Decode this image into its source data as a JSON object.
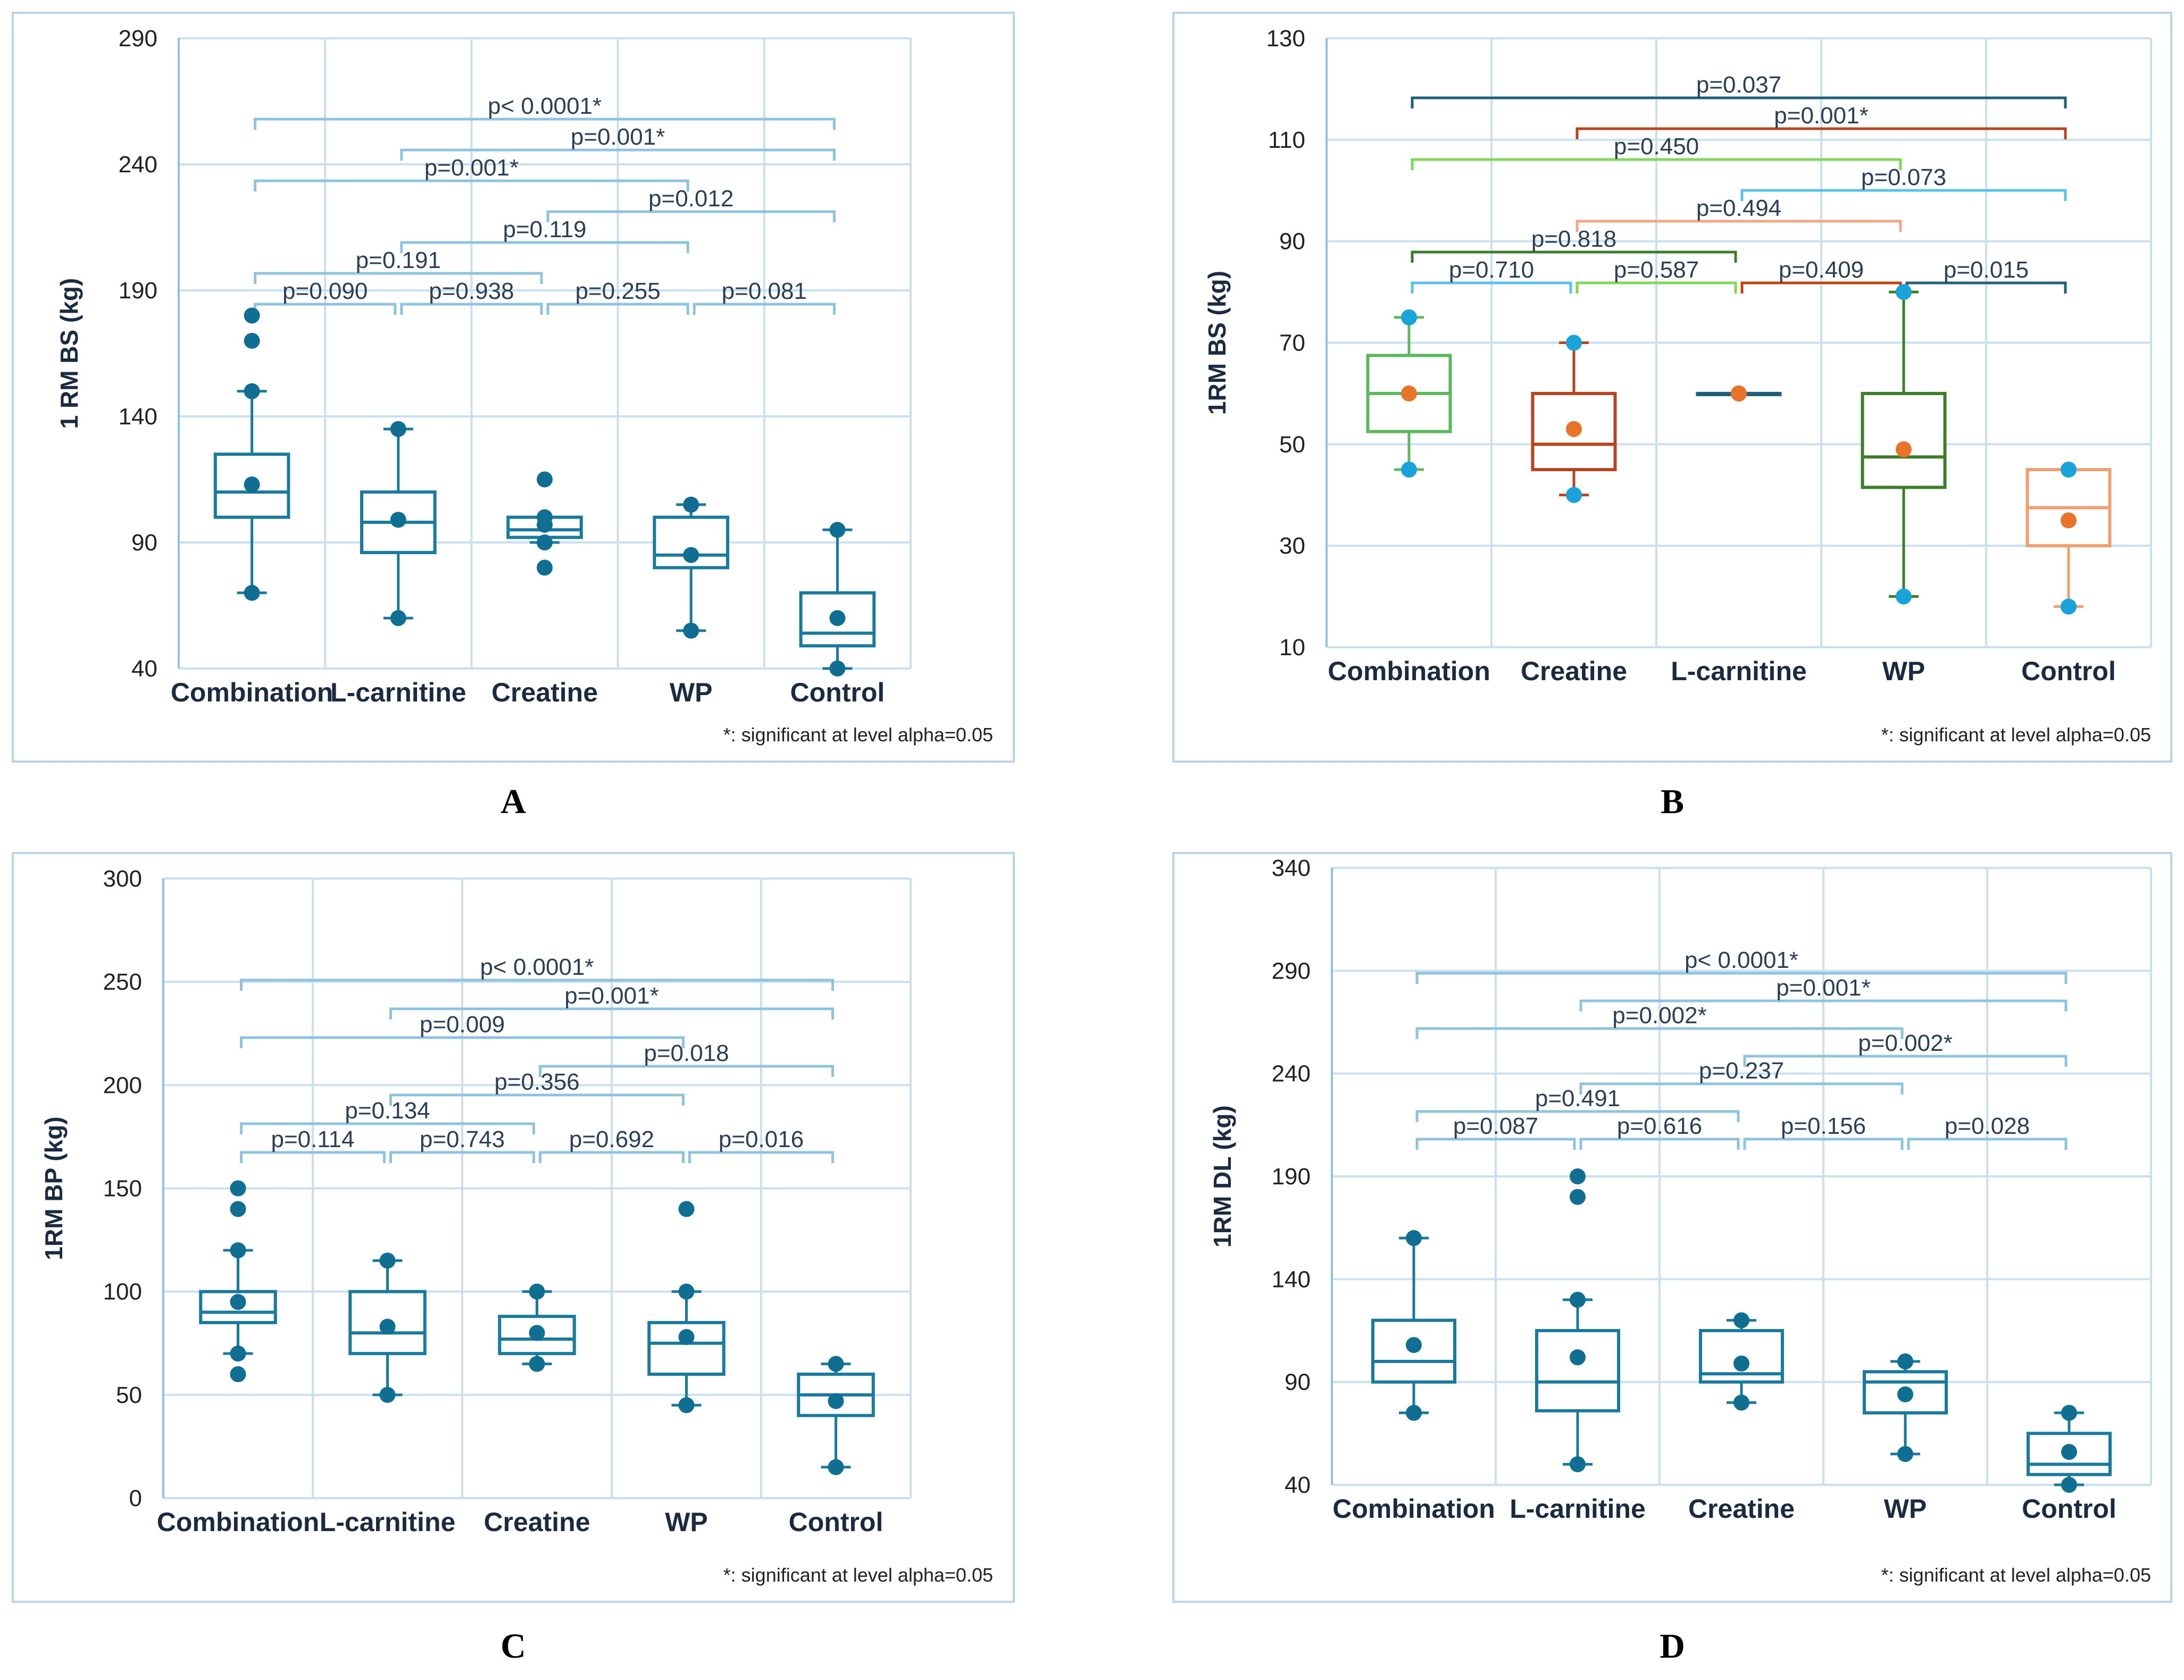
{
  "captions": [
    "A",
    "B",
    "C",
    "D"
  ],
  "chart_data": [
    {
      "panel": "A",
      "type": "box",
      "ylabel": "1 RM BS (kg)",
      "ylim": [
        40,
        290
      ],
      "yticks": [
        40,
        90,
        140,
        190,
        240,
        290
      ],
      "categories": [
        "Combination",
        "L-carnitine",
        "Creatine",
        "WP",
        "Control"
      ],
      "boxes": [
        {
          "q1": 100,
          "median": 110,
          "q3": 125,
          "whisker_low": 70,
          "whisker_high": 150,
          "mean": 113,
          "outliers": [
            170,
            180
          ]
        },
        {
          "q1": 86,
          "median": 98,
          "q3": 110,
          "whisker_low": 60,
          "whisker_high": 135,
          "mean": 99,
          "outliers": []
        },
        {
          "q1": 92,
          "median": 95,
          "q3": 100,
          "whisker_low": 90,
          "whisker_high": 100,
          "mean": 97,
          "outliers": [
            80,
            115
          ]
        },
        {
          "q1": 80,
          "median": 85,
          "q3": 100,
          "whisker_low": 55,
          "whisker_high": 105,
          "mean": 85,
          "outliers": []
        },
        {
          "q1": 49,
          "median": 54,
          "q3": 70,
          "whisker_low": 40,
          "whisker_high": 95,
          "mean": 60,
          "outliers": []
        }
      ],
      "comparisons": [
        {
          "from": 0,
          "to": 4,
          "label": "p< 0.0001*",
          "level": 7
        },
        {
          "from": 1,
          "to": 4,
          "label": "p=0.001*",
          "level": 6
        },
        {
          "from": 0,
          "to": 3,
          "label": "p=0.001*",
          "level": 5
        },
        {
          "from": 2,
          "to": 4,
          "label": "p=0.012",
          "level": 4
        },
        {
          "from": 1,
          "to": 3,
          "label": "p=0.119",
          "level": 3
        },
        {
          "from": 0,
          "to": 2,
          "label": "p=0.191",
          "level": 2
        },
        {
          "from": 0,
          "to": 1,
          "label": "p=0.090",
          "level": 1
        },
        {
          "from": 1,
          "to": 2,
          "label": "p=0.938",
          "level": 1
        },
        {
          "from": 2,
          "to": 3,
          "label": "p=0.255",
          "level": 1
        },
        {
          "from": 3,
          "to": 4,
          "label": "p=0.081",
          "level": 1
        }
      ],
      "note": "*: significant at level alpha=0.05"
    },
    {
      "panel": "B",
      "type": "box",
      "ylabel": "1RM BS (kg)",
      "ylim": [
        10,
        130
      ],
      "yticks": [
        10,
        30,
        50,
        70,
        90,
        110,
        130
      ],
      "categories": [
        "Combination",
        "Creatine",
        "L-carnitine",
        "WP",
        "Control"
      ],
      "colors": [
        "#5cb85c",
        "#b5441f",
        "#1f5f7a",
        "#3d7d2a",
        "#f0a070"
      ],
      "boxes": [
        {
          "q1": 52.5,
          "median": 60,
          "q3": 67.5,
          "whisker_low": 45,
          "whisker_high": 75,
          "mean": 60,
          "outliers": []
        },
        {
          "q1": 45,
          "median": 50,
          "q3": 60,
          "whisker_low": 40,
          "whisker_high": 70,
          "mean": 53,
          "outliers": []
        },
        {
          "q1": 60,
          "median": 60,
          "q3": 60,
          "whisker_low": 60,
          "whisker_high": 60,
          "mean": 60,
          "outliers": []
        },
        {
          "q1": 41.5,
          "median": 47.5,
          "q3": 60,
          "whisker_low": 20,
          "whisker_high": 80,
          "mean": 49,
          "outliers": []
        },
        {
          "q1": 30,
          "median": 37.5,
          "q3": 45,
          "whisker_low": 18,
          "whisker_high": 45,
          "mean": 35,
          "outliers": []
        }
      ],
      "comparisons": [
        {
          "from": 0,
          "to": 4,
          "label": "p=0.037",
          "level": 7,
          "color": "#1f5f7a"
        },
        {
          "from": 1,
          "to": 4,
          "label": "p=0.001*",
          "level": 6,
          "color": "#b5441f"
        },
        {
          "from": 0,
          "to": 3,
          "label": "p=0.450",
          "level": 5,
          "color": "#7ed957"
        },
        {
          "from": 2,
          "to": 4,
          "label": "p=0.073",
          "level": 4,
          "color": "#5bc0eb"
        },
        {
          "from": 1,
          "to": 3,
          "label": "p=0.494",
          "level": 3,
          "color": "#f4a582"
        },
        {
          "from": 0,
          "to": 2,
          "label": "p=0.818",
          "level": 2,
          "color": "#3d7d2a"
        },
        {
          "from": 0,
          "to": 1,
          "label": "p=0.710",
          "level": 1,
          "color": "#5bc0eb"
        },
        {
          "from": 1,
          "to": 2,
          "label": "p=0.587",
          "level": 1,
          "color": "#7ed957"
        },
        {
          "from": 2,
          "to": 3,
          "label": "p=0.409",
          "level": 1,
          "color": "#c1440e"
        },
        {
          "from": 3,
          "to": 4,
          "label": "p=0.015",
          "level": 1,
          "color": "#1f5f7a"
        }
      ],
      "note": "*: significant at level alpha=0.05"
    },
    {
      "panel": "C",
      "type": "box",
      "ylabel": "1RM BP (kg)",
      "ylim": [
        0,
        300
      ],
      "yticks": [
        0,
        50,
        100,
        150,
        200,
        250,
        300
      ],
      "categories": [
        "Combination",
        "L-carnitine",
        "Creatine",
        "WP",
        "Control"
      ],
      "boxes": [
        {
          "q1": 85,
          "median": 90,
          "q3": 100,
          "whisker_low": 70,
          "whisker_high": 120,
          "mean": 95,
          "outliers": [
            60,
            140,
            150
          ]
        },
        {
          "q1": 70,
          "median": 80,
          "q3": 100,
          "whisker_low": 50,
          "whisker_high": 115,
          "mean": 83,
          "outliers": []
        },
        {
          "q1": 70,
          "median": 77,
          "q3": 88,
          "whisker_low": 65,
          "whisker_high": 100,
          "mean": 80,
          "outliers": []
        },
        {
          "q1": 60,
          "median": 75,
          "q3": 85,
          "whisker_low": 45,
          "whisker_high": 100,
          "mean": 78,
          "outliers": [
            140
          ]
        },
        {
          "q1": 40,
          "median": 50,
          "q3": 60,
          "whisker_low": 15,
          "whisker_high": 65,
          "mean": 47,
          "outliers": []
        }
      ],
      "comparisons": [
        {
          "from": 0,
          "to": 4,
          "label": "p< 0.0001*",
          "level": 7
        },
        {
          "from": 1,
          "to": 4,
          "label": "p=0.001*",
          "level": 6
        },
        {
          "from": 0,
          "to": 3,
          "label": "p=0.009",
          "level": 5
        },
        {
          "from": 2,
          "to": 4,
          "label": "p=0.018",
          "level": 4
        },
        {
          "from": 1,
          "to": 3,
          "label": "p=0.356",
          "level": 3
        },
        {
          "from": 0,
          "to": 2,
          "label": "p=0.134",
          "level": 2
        },
        {
          "from": 0,
          "to": 1,
          "label": "p=0.114",
          "level": 1
        },
        {
          "from": 1,
          "to": 2,
          "label": "p=0.743",
          "level": 1
        },
        {
          "from": 2,
          "to": 3,
          "label": "p=0.692",
          "level": 1
        },
        {
          "from": 3,
          "to": 4,
          "label": "p=0.016",
          "level": 1
        }
      ],
      "note": "*: significant at level alpha=0.05"
    },
    {
      "panel": "D",
      "type": "box",
      "ylabel": "1RM DL (kg)",
      "ylim": [
        40,
        340
      ],
      "yticks": [
        40,
        90,
        140,
        190,
        240,
        290,
        340
      ],
      "categories": [
        "Combination",
        "L-carnitine",
        "Creatine",
        "WP",
        "Control"
      ],
      "boxes": [
        {
          "q1": 90,
          "median": 100,
          "q3": 120,
          "whisker_low": 75,
          "whisker_high": 160,
          "mean": 108,
          "outliers": []
        },
        {
          "q1": 76,
          "median": 90,
          "q3": 115,
          "whisker_low": 50,
          "whisker_high": 130,
          "mean": 102,
          "outliers": [
            180,
            190
          ]
        },
        {
          "q1": 90,
          "median": 94,
          "q3": 115,
          "whisker_low": 80,
          "whisker_high": 120,
          "mean": 99,
          "outliers": []
        },
        {
          "q1": 75,
          "median": 90,
          "q3": 95,
          "whisker_low": 55,
          "whisker_high": 100,
          "mean": 84,
          "outliers": [
            100
          ]
        },
        {
          "q1": 45,
          "median": 50,
          "q3": 65,
          "whisker_low": 40,
          "whisker_high": 75,
          "mean": 56,
          "outliers": []
        }
      ],
      "comparisons": [
        {
          "from": 0,
          "to": 4,
          "label": "p< 0.0001*",
          "level": 7
        },
        {
          "from": 1,
          "to": 4,
          "label": "p=0.001*",
          "level": 6
        },
        {
          "from": 0,
          "to": 3,
          "label": "p=0.002*",
          "level": 5
        },
        {
          "from": 2,
          "to": 4,
          "label": "p=0.002*",
          "level": 4
        },
        {
          "from": 1,
          "to": 3,
          "label": "p=0.237",
          "level": 3
        },
        {
          "from": 0,
          "to": 2,
          "label": "p=0.491",
          "level": 2
        },
        {
          "from": 0,
          "to": 1,
          "label": "p=0.087",
          "level": 1
        },
        {
          "from": 1,
          "to": 2,
          "label": "p=0.616",
          "level": 1
        },
        {
          "from": 2,
          "to": 3,
          "label": "p=0.156",
          "level": 1
        },
        {
          "from": 3,
          "to": 4,
          "label": "p=0.028",
          "level": 1
        }
      ],
      "note": "*: significant at level alpha=0.05"
    }
  ]
}
